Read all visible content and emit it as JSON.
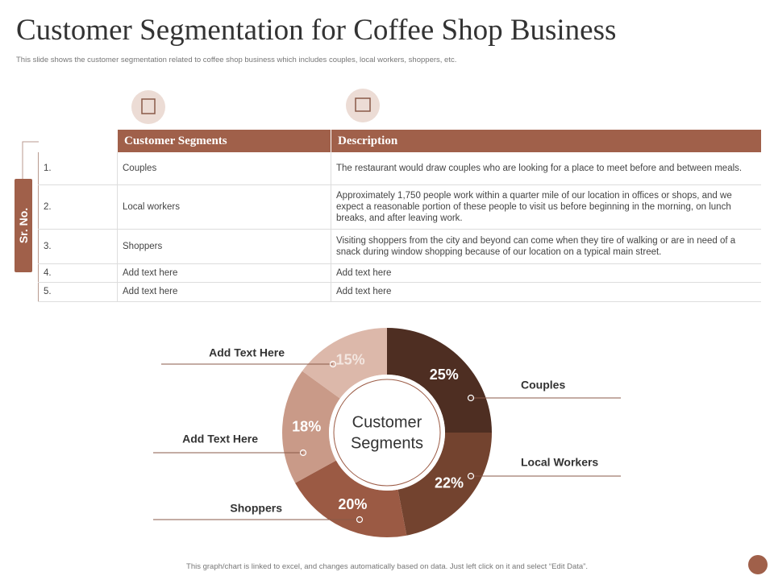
{
  "header": {
    "title": "Customer Segmentation for Coffee Shop Business",
    "subtitle": "This slide shows the customer segmentation related to coffee shop business which includes couples, local workers, shoppers, etc."
  },
  "table": {
    "side_label": "Sr. No.",
    "columns": [
      "Customer Segments",
      "Description"
    ],
    "rows": [
      [
        "1.",
        "Couples",
        "The restaurant would draw couples who are looking for a place to meet before and between meals."
      ],
      [
        "2.",
        "Local workers",
        "Approximately 1,750 people work within a quarter mile of our location in offices or shops, and we expect a reasonable portion of these people to visit us before beginning in the morning, on lunch breaks, and after leaving work."
      ],
      [
        "3.",
        "Shoppers",
        "Visiting shoppers from the city and beyond can come when they tire of walking or are in need of a snack during window shopping because of our location on a typical main street."
      ],
      [
        "4.",
        "Add text here",
        "Add text here"
      ],
      [
        "5.",
        "Add text here",
        "Add text here"
      ]
    ]
  },
  "chart_data": {
    "type": "donut",
    "center_label": [
      "Customer",
      "Segments"
    ],
    "categories": [
      "Couples",
      "Local Workers",
      "Shoppers",
      "Add Text Here",
      "Add Text Here"
    ],
    "values": [
      25,
      22,
      20,
      18,
      15
    ],
    "value_labels": [
      "25%",
      "22%",
      "20%",
      "18%",
      "15%"
    ],
    "colors": [
      "#4e2e22",
      "#73432f",
      "#9b5a44",
      "#c99a88",
      "#dcb8aa"
    ]
  },
  "footer": "This graph/chart is linked to excel, and changes automatically based on data. Just left click on it and select “Edit Data”."
}
